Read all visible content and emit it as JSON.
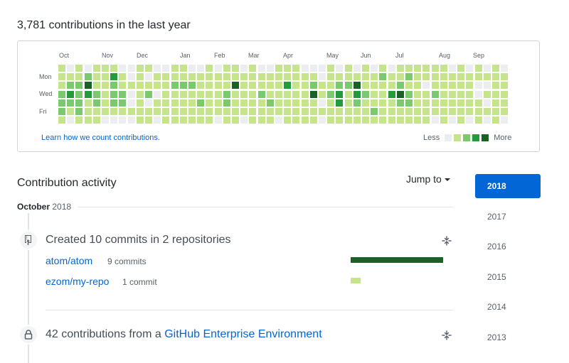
{
  "summary": {
    "title": "3,781 contributions in the last year"
  },
  "calendar": {
    "months": [
      "Oct",
      "Nov",
      "Dec",
      "Jan",
      "Feb",
      "Mar",
      "Apr",
      "May",
      "Jun",
      "Jul",
      "Aug",
      "Sep"
    ],
    "day_labels": [
      "Mon",
      "Wed",
      "Fri"
    ],
    "learn_link": "Learn how we count contributions.",
    "legend": {
      "less": "Less",
      "more": "More"
    },
    "level_colors": [
      "#ebedf0",
      "#c6e48b",
      "#7bc96f",
      "#239a3b",
      "#196127"
    ],
    "weeks": [
      "1112221",
      "0123210",
      "1122221",
      "0243111",
      "1112211",
      "1111110",
      "1322210",
      "0112210",
      "0010010",
      "1111111",
      "1012011",
      "0110110",
      "0111111",
      "1121111",
      "1121111",
      "0121111",
      "0111211",
      "1111111",
      "0111110",
      "1112211",
      "1141111",
      "0111110",
      "1111111",
      "0112111",
      "0111211",
      "1111110",
      "1131111",
      "1111111",
      "0111111",
      "0124111",
      "0011010",
      "1112111",
      "0123311",
      "1121111",
      "0143211",
      "1112111",
      "0111121",
      "1211111",
      "0113111",
      "1124211",
      "1212211",
      "1111111",
      "1101111",
      "1112110",
      "1111111",
      "0111110",
      "1111111",
      "0111110",
      "1100111",
      "0101010",
      "1111111",
      "0111110"
    ]
  },
  "activity": {
    "title": "Contribution activity",
    "jump_to": "Jump to",
    "month": "October",
    "year": "2018",
    "years": [
      "2018",
      "2017",
      "2016",
      "2015",
      "2014",
      "2013"
    ],
    "selected_year": "2018",
    "events": [
      {
        "icon": "repo-push-icon",
        "title": "Created 10 commits in 2 repositories",
        "repos": [
          {
            "name": "atom/atom",
            "count": "9 commits",
            "share": 0.9
          },
          {
            "name": "ezom/my-repo",
            "count": "1 commit",
            "share": 0.1
          }
        ]
      },
      {
        "icon": "lock-icon",
        "title_prefix": "42 contributions from a ",
        "title_link": "GitHub Enterprise Environment"
      }
    ],
    "colors": {
      "link": "#0366d6",
      "bar_high": "#196127",
      "bar_low": "#c6e48b",
      "selected_year_bg": "#0366d6"
    }
  }
}
